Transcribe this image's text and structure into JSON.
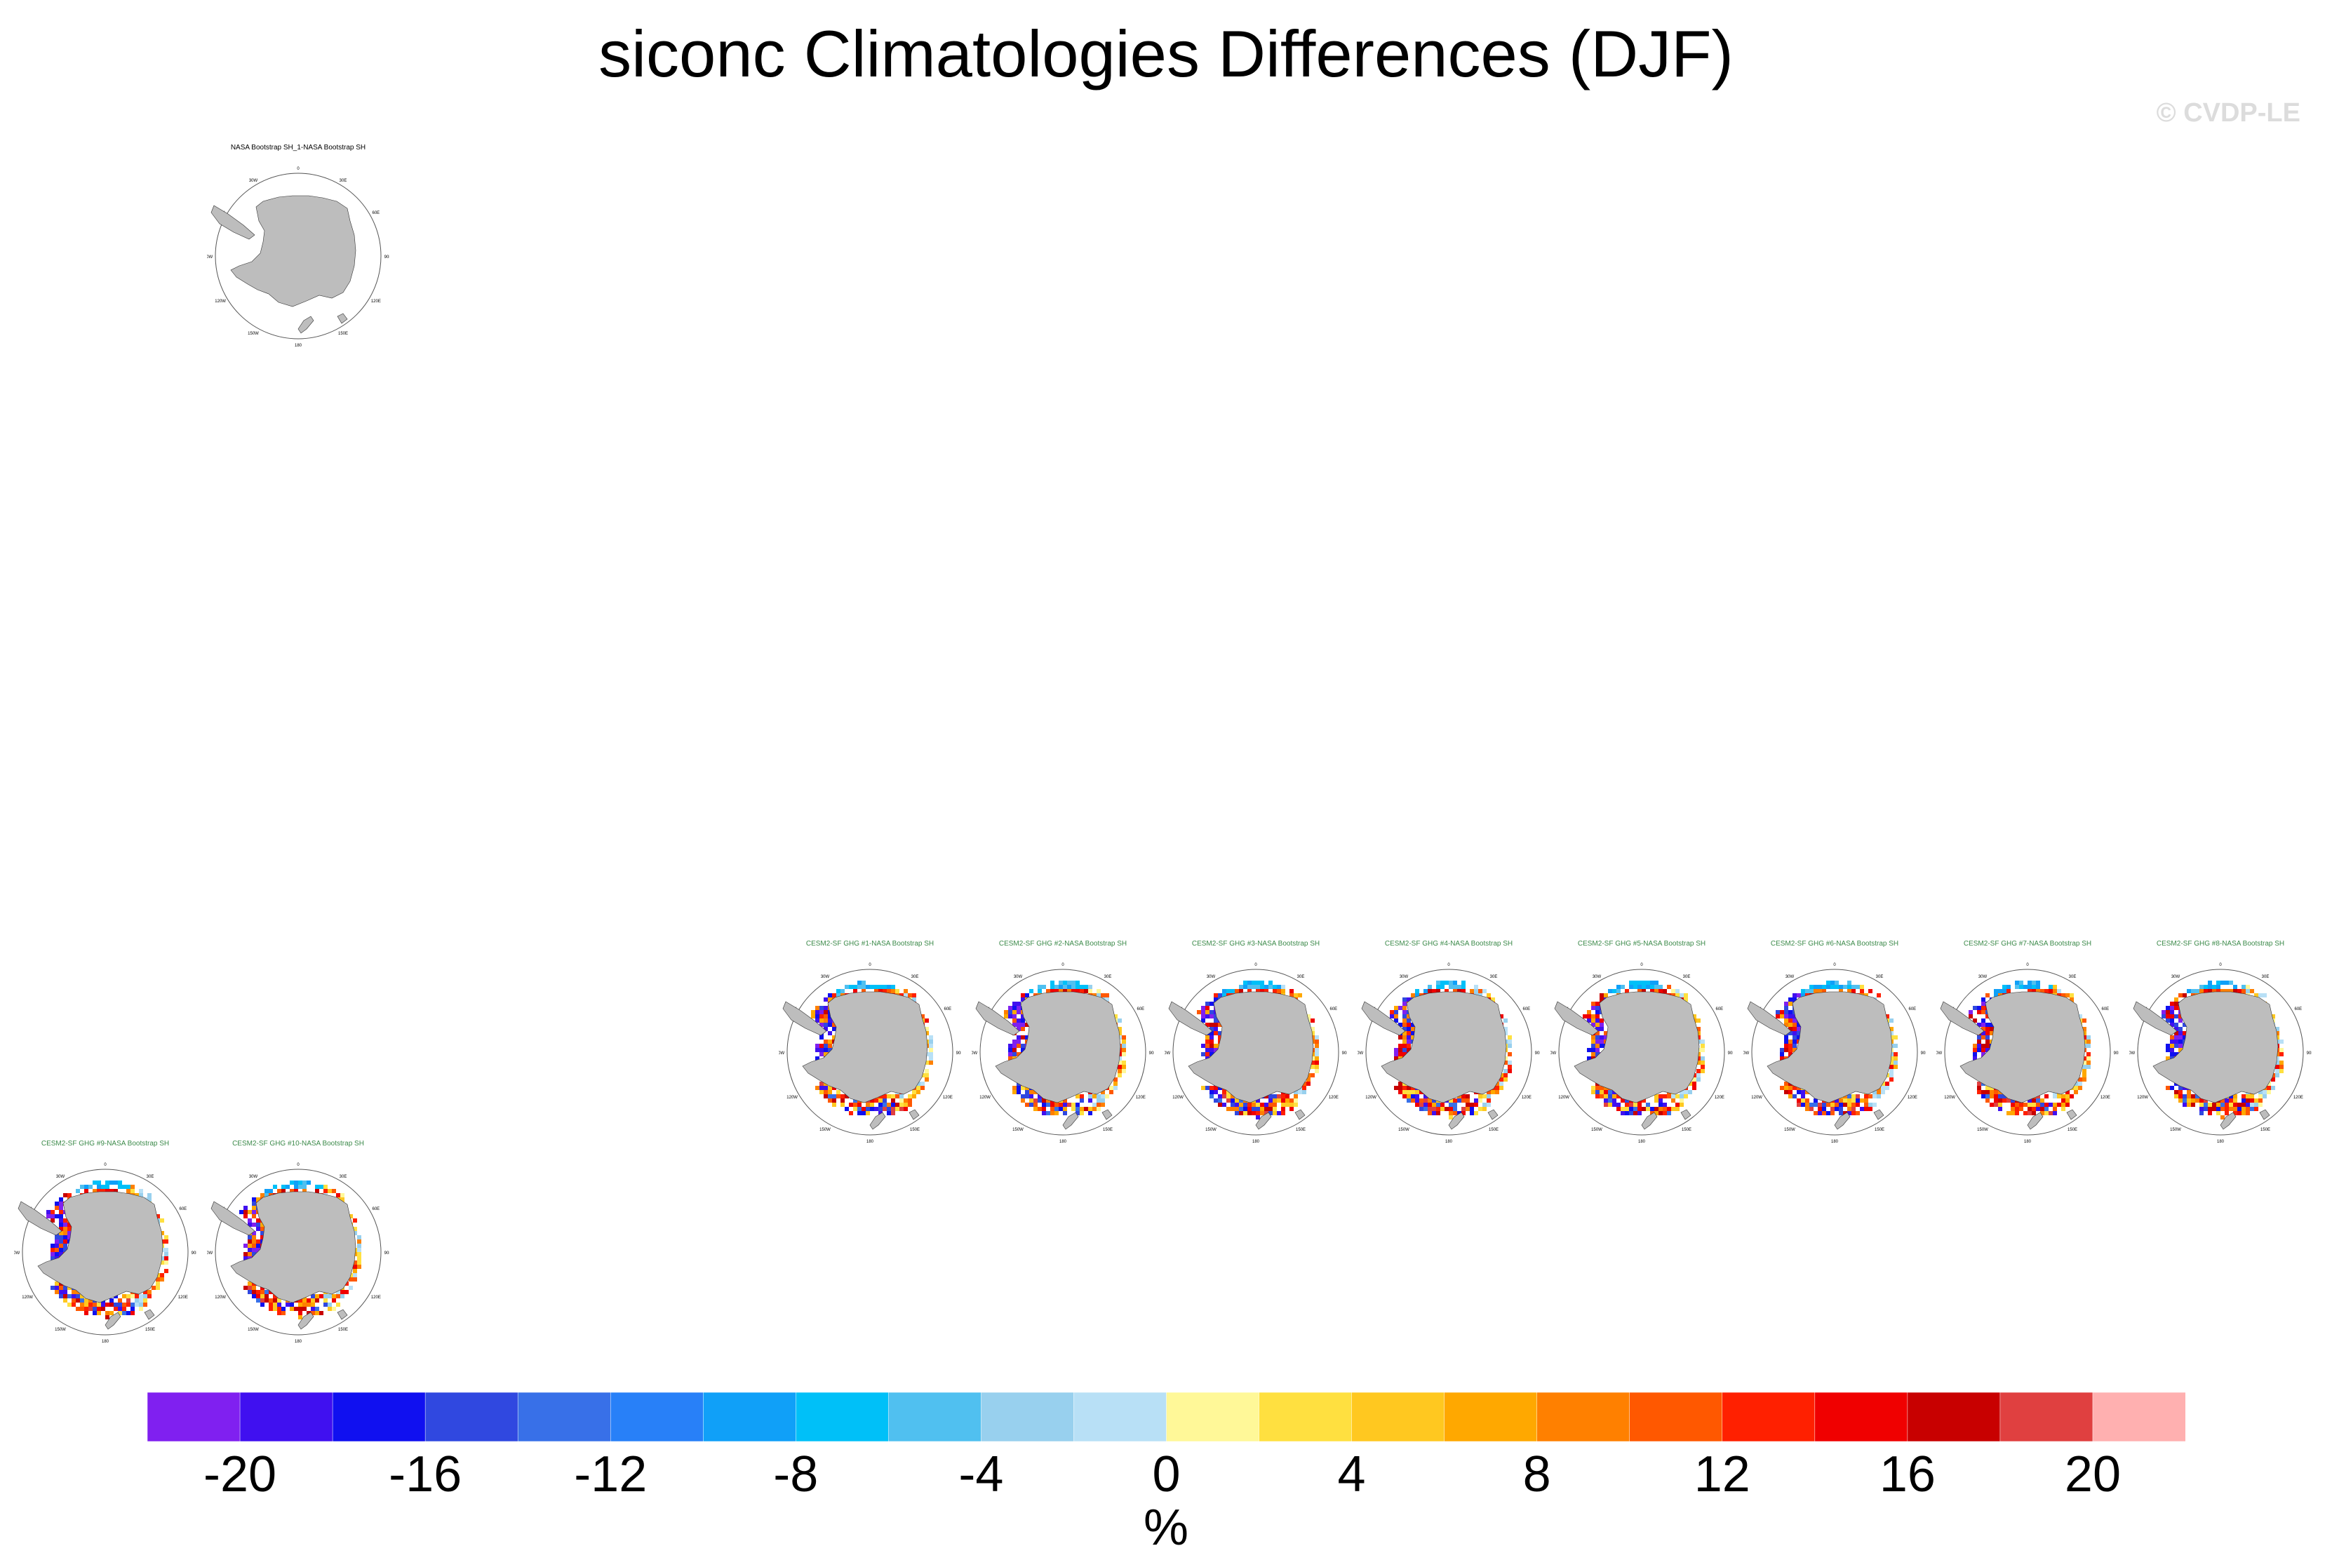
{
  "title": "siconc Climatologies Differences (DJF)",
  "watermark": "© CVDP-LE",
  "panels": [
    {
      "label": "NASA Bootstrap SH_1-NASA Bootstrap SH",
      "label_color": "#000000",
      "kind": "obs"
    },
    {
      "label": "CESM2-SF GHG #1-NASA Bootstrap SH",
      "label_color": "#3c8a4a",
      "kind": "model"
    },
    {
      "label": "CESM2-SF GHG #2-NASA Bootstrap SH",
      "label_color": "#3c8a4a",
      "kind": "model"
    },
    {
      "label": "CESM2-SF GHG #3-NASA Bootstrap SH",
      "label_color": "#3c8a4a",
      "kind": "model"
    },
    {
      "label": "CESM2-SF GHG #4-NASA Bootstrap SH",
      "label_color": "#3c8a4a",
      "kind": "model"
    },
    {
      "label": "CESM2-SF GHG #5-NASA Bootstrap SH",
      "label_color": "#3c8a4a",
      "kind": "model"
    },
    {
      "label": "CESM2-SF GHG #6-NASA Bootstrap SH",
      "label_color": "#3c8a4a",
      "kind": "model"
    },
    {
      "label": "CESM2-SF GHG #7-NASA Bootstrap SH",
      "label_color": "#3c8a4a",
      "kind": "model"
    },
    {
      "label": "CESM2-SF GHG #8-NASA Bootstrap SH",
      "label_color": "#3c8a4a",
      "kind": "model"
    },
    {
      "label": "CESM2-SF GHG #9-NASA Bootstrap SH",
      "label_color": "#3c8a4a",
      "kind": "model"
    },
    {
      "label": "CESM2-SF GHG #10-NASA Bootstrap SH",
      "label_color": "#3c8a4a",
      "kind": "model"
    }
  ],
  "map_lon_labels": [
    "0",
    "30E",
    "60E",
    "90E",
    "120E",
    "150E",
    "180",
    "150W",
    "120W",
    "90W",
    "60W",
    "30W"
  ],
  "colorbar": {
    "colors": [
      "#8020f0",
      "#4010f0",
      "#1010f0",
      "#3048e0",
      "#3870e8",
      "#2880f8",
      "#10a0f8",
      "#00c0f8",
      "#50c0f0",
      "#98d0ee",
      "#b8e0f6",
      "#fff898",
      "#ffe040",
      "#ffc820",
      "#ffa800",
      "#ff8000",
      "#ff5800",
      "#ff2000",
      "#f00000",
      "#c80000",
      "#e04040",
      "#ffb0b0"
    ],
    "tick_labels": [
      "-20",
      "-16",
      "-12",
      "-8",
      "-4",
      "0",
      "4",
      "8",
      "12",
      "16",
      "20"
    ],
    "unit": "%"
  }
}
